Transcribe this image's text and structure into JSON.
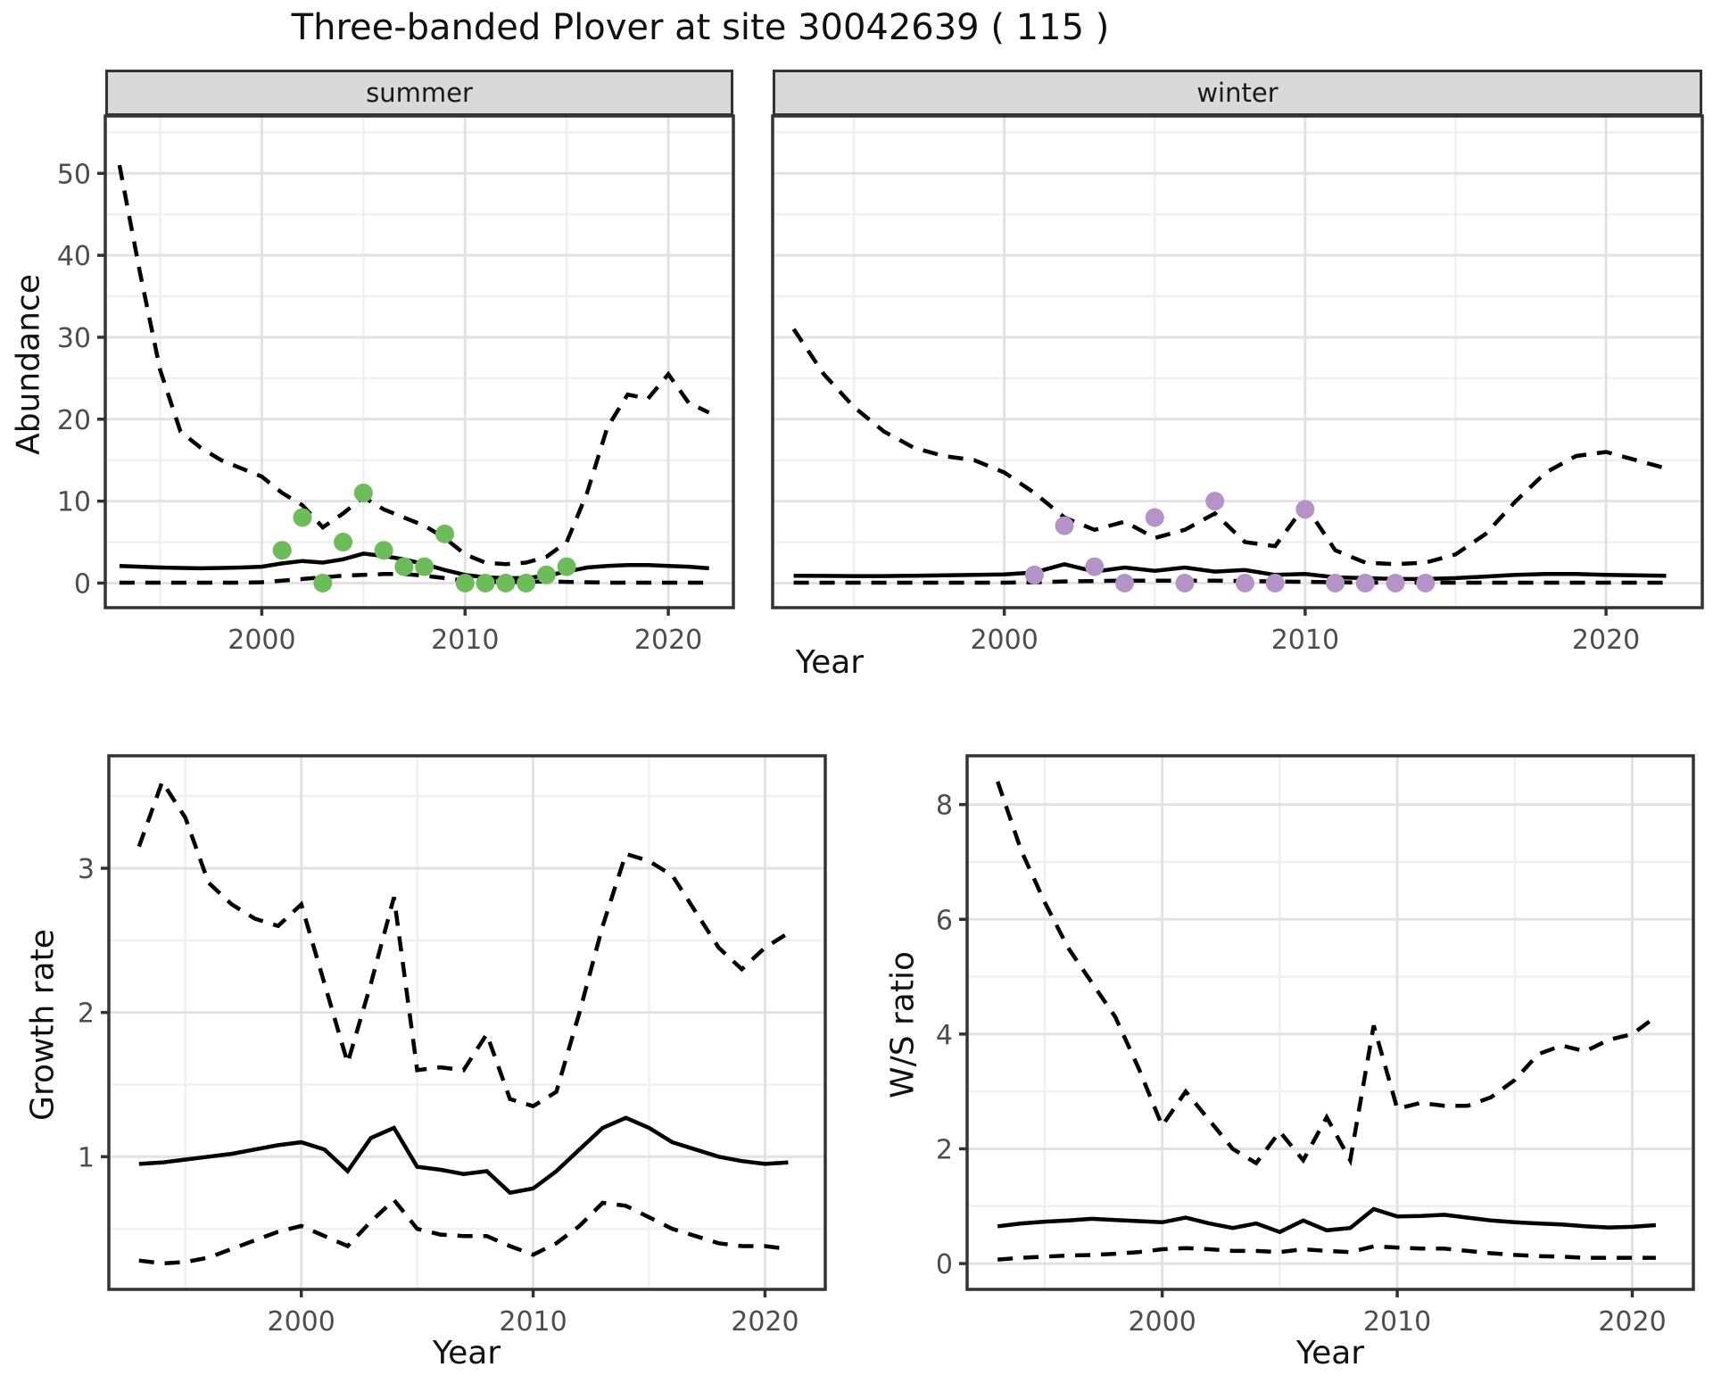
{
  "title": "Three-banded Plover at site 30042639 ( 115 )",
  "colors": {
    "summer_points": "#6cbc5a",
    "winter_points": "#b494c8",
    "line": "#000000",
    "strip_bg": "#d9d9d9",
    "grid_major": "#e2e2e2",
    "grid_minor": "#f0f0f0",
    "frame": "#333333",
    "tick_label": "#4d4d4d"
  },
  "chart_data": [
    {
      "type": "line",
      "facet_label": "summer",
      "xlabel": "Year",
      "ylabel": "Abundance",
      "xlim": [
        1992.3,
        2023.2
      ],
      "ylim": [
        -3,
        57
      ],
      "x_ticks": [
        {
          "v": 2000,
          "label": "2000"
        },
        {
          "v": 2010,
          "label": "2010"
        },
        {
          "v": 2020,
          "label": "2020"
        }
      ],
      "x_minor": [
        1995,
        2005,
        2015
      ],
      "y_ticks": [
        {
          "v": 0,
          "label": "0"
        },
        {
          "v": 10,
          "label": "10"
        },
        {
          "v": 20,
          "label": "20"
        },
        {
          "v": 30,
          "label": "30"
        },
        {
          "v": 40,
          "label": "40"
        },
        {
          "v": 50,
          "label": "50"
        }
      ],
      "y_minor": [
        5,
        15,
        25,
        35,
        45,
        55
      ],
      "show_y_tick_labels": true,
      "years": [
        1993,
        1994,
        1995,
        1996,
        1997,
        1998,
        1999,
        2000,
        2001,
        2002,
        2003,
        2004,
        2005,
        2006,
        2007,
        2008,
        2009,
        2010,
        2011,
        2012,
        2013,
        2014,
        2015,
        2016,
        2017,
        2018,
        2019,
        2020,
        2021,
        2022
      ],
      "series": [
        {
          "name": "upper-95ci",
          "style": "dashed",
          "values": [
            51,
            38,
            26,
            18.5,
            16.5,
            15,
            14,
            13,
            11,
            9.5,
            6.8,
            8.5,
            10.5,
            9,
            8,
            7,
            5.5,
            3.5,
            2.5,
            2.3,
            2.5,
            3.2,
            5,
            11,
            19,
            23,
            22.5,
            25.5,
            22,
            20.8
          ]
        },
        {
          "name": "median",
          "style": "solid",
          "values": [
            2.1,
            2.0,
            1.9,
            1.85,
            1.8,
            1.85,
            1.9,
            2.0,
            2.4,
            2.7,
            2.5,
            2.9,
            3.6,
            3.3,
            2.9,
            2.3,
            1.6,
            1.0,
            0.7,
            0.6,
            0.6,
            0.9,
            1.4,
            1.9,
            2.1,
            2.2,
            2.2,
            2.1,
            2.0,
            1.8
          ]
        },
        {
          "name": "lower-95ci",
          "style": "dashed",
          "values": [
            0.05,
            0.05,
            0.05,
            0.05,
            0.05,
            0.05,
            0.05,
            0.1,
            0.3,
            0.5,
            0.7,
            0.9,
            1.0,
            1.1,
            1.1,
            0.9,
            0.6,
            0.3,
            0.15,
            0.1,
            0.15,
            0.2,
            0.15,
            0.1,
            0.05,
            0.05,
            0.05,
            0.05,
            0.05,
            0.05
          ]
        }
      ],
      "points": {
        "color_key": "summer_points",
        "data": [
          [
            2001,
            4
          ],
          [
            2002,
            8
          ],
          [
            2003,
            0
          ],
          [
            2004,
            5
          ],
          [
            2005,
            11
          ],
          [
            2006,
            4
          ],
          [
            2007,
            2
          ],
          [
            2008,
            2
          ],
          [
            2009,
            6
          ],
          [
            2010,
            0
          ],
          [
            2011,
            0
          ],
          [
            2012,
            0
          ],
          [
            2013,
            0
          ],
          [
            2014,
            1
          ],
          [
            2015,
            2
          ]
        ]
      }
    },
    {
      "type": "line",
      "facet_label": "winter",
      "xlabel": "Year",
      "ylabel": "Abundance",
      "xlim": [
        1992.3,
        2023.2
      ],
      "ylim": [
        -3,
        57
      ],
      "x_ticks": [
        {
          "v": 2000,
          "label": "2000"
        },
        {
          "v": 2010,
          "label": "2010"
        },
        {
          "v": 2020,
          "label": "2020"
        }
      ],
      "x_minor": [
        1995,
        2005,
        2015
      ],
      "y_ticks": [
        {
          "v": 0,
          "label": "0"
        },
        {
          "v": 10,
          "label": "10"
        },
        {
          "v": 20,
          "label": "20"
        },
        {
          "v": 30,
          "label": "30"
        },
        {
          "v": 40,
          "label": "40"
        },
        {
          "v": 50,
          "label": "50"
        }
      ],
      "y_minor": [
        5,
        15,
        25,
        35,
        45,
        55
      ],
      "show_y_tick_labels": false,
      "years": [
        1993,
        1994,
        1995,
        1996,
        1997,
        1998,
        1999,
        2000,
        2001,
        2002,
        2003,
        2004,
        2005,
        2006,
        2007,
        2008,
        2009,
        2010,
        2011,
        2012,
        2013,
        2014,
        2015,
        2016,
        2017,
        2018,
        2019,
        2020,
        2021,
        2022
      ],
      "series": [
        {
          "name": "upper-95ci",
          "style": "dashed",
          "values": [
            31,
            25.5,
            21.5,
            18.5,
            16.5,
            15.5,
            15,
            13.5,
            11,
            8,
            6.5,
            7.5,
            5.5,
            6.5,
            8.5,
            5,
            4.5,
            9.5,
            4,
            2.5,
            2.3,
            2.5,
            3.5,
            6,
            10,
            13.5,
            15.5,
            16,
            15,
            14
          ]
        },
        {
          "name": "median",
          "style": "solid",
          "values": [
            0.9,
            0.88,
            0.85,
            0.85,
            0.9,
            0.95,
            1.0,
            1.05,
            1.3,
            2.3,
            1.4,
            1.9,
            1.5,
            1.9,
            1.4,
            1.6,
            1.0,
            1.1,
            0.7,
            0.6,
            0.5,
            0.5,
            0.6,
            0.8,
            1.0,
            1.1,
            1.1,
            1.0,
            0.95,
            0.9
          ]
        },
        {
          "name": "lower-95ci",
          "style": "dashed",
          "values": [
            0.05,
            0.05,
            0.05,
            0.05,
            0.05,
            0.05,
            0.05,
            0.05,
            0.1,
            0.2,
            0.25,
            0.3,
            0.3,
            0.3,
            0.3,
            0.25,
            0.2,
            0.15,
            0.1,
            0.05,
            0.05,
            0.05,
            0.05,
            0.05,
            0.05,
            0.05,
            0.05,
            0.05,
            0.05,
            0.05
          ]
        }
      ],
      "points": {
        "color_key": "winter_points",
        "data": [
          [
            2001,
            1
          ],
          [
            2002,
            7
          ],
          [
            2003,
            2
          ],
          [
            2004,
            0
          ],
          [
            2005,
            8
          ],
          [
            2006,
            0
          ],
          [
            2007,
            10
          ],
          [
            2008,
            0
          ],
          [
            2009,
            0
          ],
          [
            2010,
            9
          ],
          [
            2011,
            0
          ],
          [
            2012,
            0
          ],
          [
            2013,
            0
          ],
          [
            2014,
            0
          ]
        ]
      }
    },
    {
      "type": "line",
      "facet_label": "",
      "xlabel": "Year",
      "ylabel": "Growth rate",
      "xlim": [
        1991.7,
        2022.6
      ],
      "ylim": [
        0.08,
        3.78
      ],
      "x_ticks": [
        {
          "v": 2000,
          "label": "2000"
        },
        {
          "v": 2010,
          "label": "2010"
        },
        {
          "v": 2020,
          "label": "2020"
        }
      ],
      "x_minor": [
        1995,
        2005,
        2015
      ],
      "y_ticks": [
        {
          "v": 1,
          "label": "1"
        },
        {
          "v": 2,
          "label": "2"
        },
        {
          "v": 3,
          "label": "3"
        }
      ],
      "y_minor": [
        0.5,
        1.5,
        2.5,
        3.5
      ],
      "show_y_tick_labels": true,
      "years": [
        1993,
        1994,
        1995,
        1996,
        1997,
        1998,
        1999,
        2000,
        2001,
        2002,
        2003,
        2004,
        2005,
        2006,
        2007,
        2008,
        2009,
        2010,
        2011,
        2012,
        2013,
        2014,
        2015,
        2016,
        2017,
        2018,
        2019,
        2020,
        2021
      ],
      "series": [
        {
          "name": "upper-95ci",
          "style": "dashed",
          "values": [
            3.15,
            3.6,
            3.35,
            2.9,
            2.75,
            2.65,
            2.6,
            2.75,
            2.2,
            1.65,
            2.2,
            2.8,
            1.6,
            1.62,
            1.6,
            1.85,
            1.4,
            1.35,
            1.45,
            2.0,
            2.6,
            3.1,
            3.05,
            2.95,
            2.7,
            2.45,
            2.3,
            2.45,
            2.55
          ]
        },
        {
          "name": "median",
          "style": "solid",
          "values": [
            0.95,
            0.96,
            0.98,
            1.0,
            1.02,
            1.05,
            1.08,
            1.1,
            1.05,
            0.9,
            1.13,
            1.2,
            0.93,
            0.91,
            0.88,
            0.9,
            0.75,
            0.78,
            0.9,
            1.05,
            1.2,
            1.27,
            1.2,
            1.1,
            1.05,
            1.0,
            0.97,
            0.95,
            0.96
          ]
        },
        {
          "name": "lower-95ci",
          "style": "dashed",
          "values": [
            0.28,
            0.26,
            0.27,
            0.3,
            0.36,
            0.42,
            0.48,
            0.52,
            0.45,
            0.38,
            0.55,
            0.7,
            0.5,
            0.46,
            0.45,
            0.45,
            0.38,
            0.32,
            0.4,
            0.52,
            0.68,
            0.66,
            0.58,
            0.5,
            0.45,
            0.4,
            0.38,
            0.38,
            0.36
          ]
        }
      ],
      "points": null
    },
    {
      "type": "line",
      "facet_label": "",
      "xlabel": "Year",
      "ylabel": "W/S ratio",
      "xlim": [
        1991.7,
        2022.6
      ],
      "ylim": [
        -0.45,
        8.85
      ],
      "x_ticks": [
        {
          "v": 2000,
          "label": "2000"
        },
        {
          "v": 2010,
          "label": "2010"
        },
        {
          "v": 2020,
          "label": "2020"
        }
      ],
      "x_minor": [
        1995,
        2005,
        2015
      ],
      "y_ticks": [
        {
          "v": 0,
          "label": "0"
        },
        {
          "v": 2,
          "label": "2"
        },
        {
          "v": 4,
          "label": "4"
        },
        {
          "v": 6,
          "label": "6"
        },
        {
          "v": 8,
          "label": "8"
        }
      ],
      "y_minor": [
        1,
        3,
        5,
        7
      ],
      "show_y_tick_labels": true,
      "years": [
        1993,
        1994,
        1995,
        1996,
        1997,
        1998,
        1999,
        2000,
        2001,
        2002,
        2003,
        2004,
        2005,
        2006,
        2007,
        2008,
        2009,
        2010,
        2011,
        2012,
        2013,
        2014,
        2015,
        2016,
        2017,
        2018,
        2019,
        2020,
        2021
      ],
      "series": [
        {
          "name": "upper-95ci",
          "style": "dashed",
          "values": [
            8.4,
            7.2,
            6.3,
            5.5,
            4.9,
            4.3,
            3.4,
            2.4,
            3.0,
            2.5,
            2.0,
            1.75,
            2.3,
            1.8,
            2.55,
            1.8,
            4.15,
            2.7,
            2.8,
            2.75,
            2.75,
            2.9,
            3.2,
            3.65,
            3.8,
            3.7,
            3.9,
            4.0,
            4.3
          ]
        },
        {
          "name": "median",
          "style": "solid",
          "values": [
            0.65,
            0.7,
            0.73,
            0.75,
            0.78,
            0.76,
            0.74,
            0.72,
            0.8,
            0.7,
            0.62,
            0.7,
            0.55,
            0.75,
            0.58,
            0.62,
            0.95,
            0.82,
            0.83,
            0.85,
            0.8,
            0.75,
            0.72,
            0.7,
            0.68,
            0.65,
            0.63,
            0.64,
            0.67
          ]
        },
        {
          "name": "lower-95ci",
          "style": "dashed",
          "values": [
            0.07,
            0.1,
            0.12,
            0.14,
            0.15,
            0.17,
            0.2,
            0.25,
            0.27,
            0.25,
            0.22,
            0.22,
            0.2,
            0.25,
            0.22,
            0.2,
            0.3,
            0.28,
            0.26,
            0.26,
            0.22,
            0.18,
            0.15,
            0.13,
            0.12,
            0.1,
            0.1,
            0.1,
            0.1
          ]
        }
      ],
      "points": null
    }
  ]
}
